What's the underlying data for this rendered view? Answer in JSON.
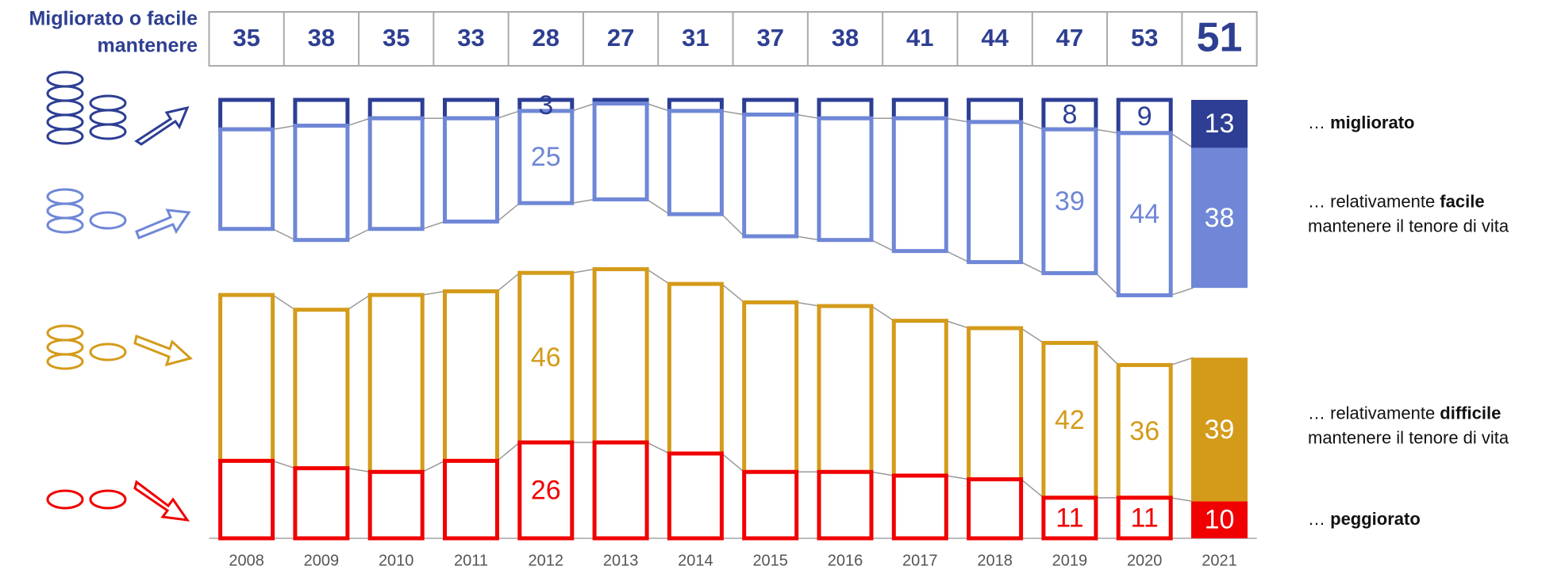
{
  "chart_data": {
    "type": "diverging_stacked_bar",
    "categories": [
      "2008",
      "2009",
      "2010",
      "2011",
      "2012",
      "2013",
      "2014",
      "2015",
      "2016",
      "2017",
      "2018",
      "2019",
      "2020",
      "2021"
    ],
    "totals": {
      "lines": [
        "Migliorato o facile",
        "mantenere"
      ],
      "values": [
        35,
        38,
        35,
        33,
        28,
        27,
        31,
        37,
        38,
        41,
        44,
        47,
        53,
        51
      ],
      "color": "#2e3f91",
      "emphasize_last": true
    },
    "filled_last": true,
    "series": [
      {
        "name": "migliorato",
        "panel": "top",
        "color": "#2d3e94",
        "label": [
          [
            {
              "text": "… ",
              "bold": false
            },
            {
              "text": "migliorato",
              "bold": true
            }
          ]
        ],
        "values": [
          8,
          7,
          5,
          5,
          3,
          1,
          3,
          4,
          5,
          5,
          6,
          8,
          9,
          13
        ],
        "value_labels": [
          null,
          null,
          null,
          null,
          "3",
          null,
          null,
          null,
          null,
          null,
          null,
          "8",
          "9",
          "13"
        ]
      },
      {
        "name": "facile",
        "panel": "top",
        "color": "#6f87d6",
        "label": [
          [
            {
              "text": "… relativamente ",
              "bold": false
            },
            {
              "text": "facile",
              "bold": true
            }
          ],
          [
            {
              "text": "mantenere il tenore di vita",
              "bold": false
            }
          ]
        ],
        "values": [
          27,
          31,
          30,
          28,
          25,
          26,
          28,
          33,
          33,
          36,
          38,
          39,
          44,
          38
        ],
        "value_labels": [
          null,
          null,
          null,
          null,
          "25",
          null,
          null,
          null,
          null,
          null,
          null,
          "39",
          "44",
          "38"
        ]
      },
      {
        "name": "difficile",
        "panel": "bottom",
        "color": "#d49b1a",
        "label": [
          [
            {
              "text": "… relativamente ",
              "bold": false
            },
            {
              "text": "difficile",
              "bold": true
            }
          ],
          [
            {
              "text": "mantenere il tenore di vita",
              "bold": false
            }
          ]
        ],
        "values": [
          45,
          43,
          48,
          46,
          46,
          47,
          46,
          46,
          45,
          42,
          41,
          42,
          36,
          39
        ],
        "value_labels": [
          null,
          null,
          null,
          null,
          "46",
          null,
          null,
          null,
          null,
          null,
          null,
          "42",
          "36",
          "39"
        ]
      },
      {
        "name": "peggiorato",
        "panel": "bottom",
        "color": "#f00000",
        "label": [
          [
            {
              "text": "… ",
              "bold": false
            },
            {
              "text": "peggiorato",
              "bold": true
            }
          ]
        ],
        "values": [
          21,
          19,
          18,
          21,
          26,
          26,
          23,
          18,
          18,
          17,
          16,
          11,
          11,
          10
        ],
        "value_labels": [
          null,
          null,
          null,
          null,
          "26",
          null,
          null,
          null,
          null,
          null,
          null,
          "11",
          "11",
          "10"
        ]
      }
    ]
  }
}
